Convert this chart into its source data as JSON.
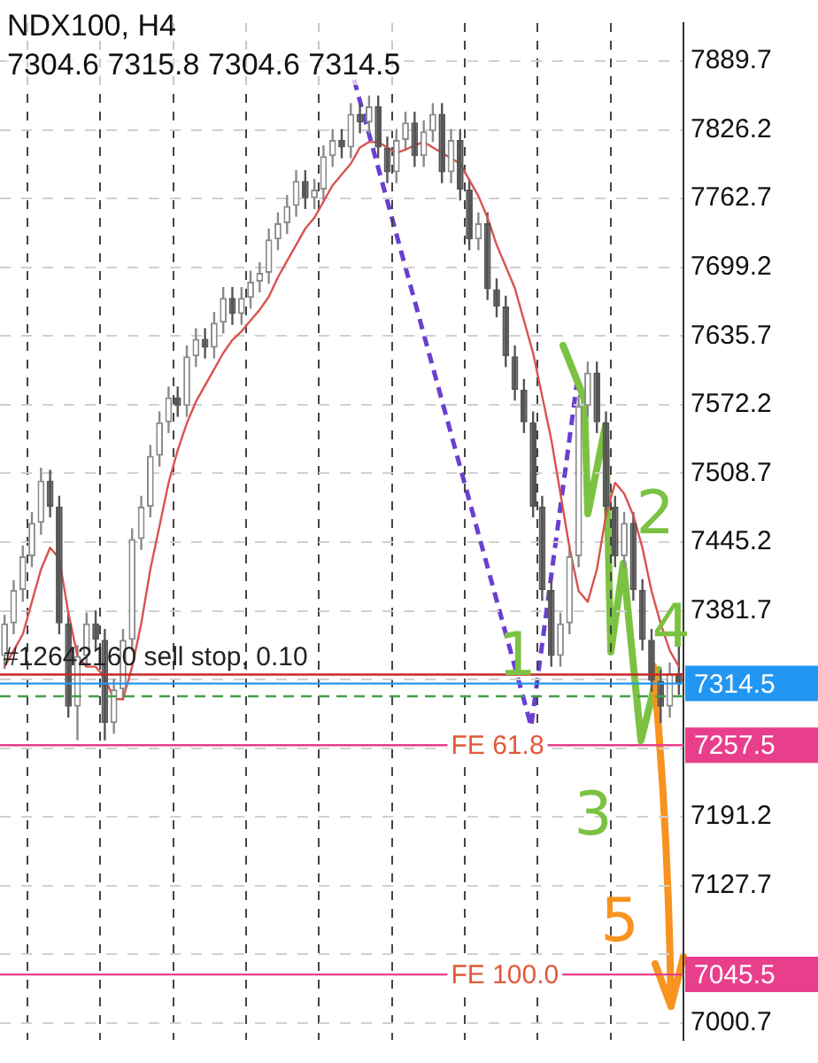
{
  "chart_data": {
    "type": "candlestick",
    "title": "NDX100, H4",
    "subtitle": "7304.6 7315.8 7304.6 7314.5",
    "categories": [
      null,
      null,
      null,
      null,
      null,
      null,
      null,
      null,
      null,
      null,
      null,
      null,
      null,
      null,
      null,
      null,
      null,
      null,
      null,
      null,
      null,
      null,
      null,
      null,
      null,
      null,
      null,
      null,
      null,
      null,
      null,
      null,
      null,
      null,
      null,
      null,
      null,
      null,
      null,
      null,
      null,
      null,
      null,
      null,
      null,
      null,
      null,
      null,
      null,
      null,
      null,
      null,
      null,
      null,
      null,
      null,
      null,
      null,
      null,
      null,
      null,
      null,
      null,
      null,
      null,
      null,
      null,
      null,
      null,
      null,
      null,
      null,
      null,
      null,
      null
    ],
    "ohlc": [
      [
        7340,
        7378,
        7328,
        7370
      ],
      [
        7370,
        7410,
        7360,
        7401
      ],
      [
        7401,
        7442,
        7390,
        7432
      ],
      [
        7432,
        7473,
        7422,
        7463
      ],
      [
        7463,
        7514,
        7452,
        7502
      ],
      [
        7502,
        7512,
        7468,
        7478
      ],
      [
        7478,
        7488,
        7360,
        7370
      ],
      [
        7370,
        7380,
        7283,
        7293
      ],
      [
        7293,
        7350,
        7262,
        7340
      ],
      [
        7340,
        7380,
        7330,
        7370
      ],
      [
        7370,
        7382,
        7345,
        7355
      ],
      [
        7355,
        7365,
        7262,
        7278
      ],
      [
        7278,
        7319,
        7268,
        7309
      ],
      [
        7309,
        7365,
        7299,
        7355
      ],
      [
        7355,
        7458,
        7345,
        7448
      ],
      [
        7448,
        7488,
        7438,
        7478
      ],
      [
        7478,
        7535,
        7468,
        7525
      ],
      [
        7525,
        7566,
        7515,
        7556
      ],
      [
        7556,
        7589,
        7546,
        7579
      ],
      [
        7579,
        7589,
        7561,
        7571
      ],
      [
        7571,
        7627,
        7561,
        7617
      ],
      [
        7617,
        7643,
        7607,
        7633
      ],
      [
        7633,
        7643,
        7615,
        7625
      ],
      [
        7625,
        7658,
        7615,
        7648
      ],
      [
        7648,
        7681,
        7638,
        7671
      ],
      [
        7671,
        7681,
        7646,
        7656
      ],
      [
        7656,
        7681,
        7646,
        7671
      ],
      [
        7671,
        7696,
        7661,
        7686
      ],
      [
        7686,
        7704,
        7676,
        7694
      ],
      [
        7694,
        7735,
        7684,
        7725
      ],
      [
        7725,
        7750,
        7715,
        7740
      ],
      [
        7740,
        7766,
        7730,
        7756
      ],
      [
        7756,
        7789,
        7746,
        7779
      ],
      [
        7779,
        7789,
        7753,
        7763
      ],
      [
        7763,
        7781,
        7753,
        7771
      ],
      [
        7771,
        7812,
        7761,
        7802
      ],
      [
        7802,
        7827,
        7792,
        7817
      ],
      [
        7817,
        7827,
        7800,
        7810
      ],
      [
        7810,
        7851,
        7800,
        7841
      ],
      [
        7841,
        7851,
        7823,
        7833
      ],
      [
        7833,
        7858,
        7823,
        7848
      ],
      [
        7848,
        7858,
        7800,
        7810
      ],
      [
        7810,
        7820,
        7777,
        7787
      ],
      [
        7787,
        7827,
        7777,
        7817
      ],
      [
        7817,
        7843,
        7807,
        7833
      ],
      [
        7833,
        7843,
        7792,
        7802
      ],
      [
        7802,
        7835,
        7792,
        7825
      ],
      [
        7825,
        7851,
        7815,
        7841
      ],
      [
        7841,
        7851,
        7777,
        7787
      ],
      [
        7787,
        7827,
        7777,
        7817
      ],
      [
        7817,
        7827,
        7761,
        7771
      ],
      [
        7771,
        7781,
        7715,
        7725
      ],
      [
        7725,
        7750,
        7715,
        7740
      ],
      [
        7740,
        7750,
        7669,
        7679
      ],
      [
        7679,
        7689,
        7653,
        7663
      ],
      [
        7663,
        7673,
        7607,
        7617
      ],
      [
        7617,
        7627,
        7576,
        7586
      ],
      [
        7586,
        7596,
        7546,
        7556
      ],
      [
        7556,
        7566,
        7468,
        7478
      ],
      [
        7478,
        7488,
        7391,
        7401
      ],
      [
        7401,
        7411,
        7330,
        7340
      ],
      [
        7340,
        7380,
        7330,
        7370
      ],
      [
        7370,
        7442,
        7360,
        7432
      ],
      [
        7432,
        7581,
        7422,
        7571
      ],
      [
        7571,
        7612,
        7561,
        7602
      ],
      [
        7602,
        7612,
        7546,
        7556
      ],
      [
        7556,
        7566,
        7468,
        7478
      ],
      [
        7478,
        7488,
        7422,
        7432
      ],
      [
        7432,
        7473,
        7422,
        7463
      ],
      [
        7463,
        7473,
        7391,
        7401
      ],
      [
        7401,
        7411,
        7345,
        7355
      ],
      [
        7355,
        7365,
        7307,
        7317
      ],
      [
        7317,
        7327,
        7278,
        7293
      ],
      [
        7293,
        7334,
        7283,
        7324
      ],
      [
        7324,
        7350,
        7304,
        7314.5
      ]
    ],
    "colors": [
      "#8a8a8a",
      "#8a8a8a",
      "#8a8a8a",
      "#8a8a8a",
      "#8a8a8a",
      "#555555",
      "#555555",
      "#555555",
      "#8a8a8a",
      "#8a8a8a",
      "#555555",
      "#555555",
      "#8a8a8a",
      "#8a8a8a",
      "#8a8a8a",
      "#8a8a8a",
      "#8a8a8a",
      "#8a8a8a",
      "#8a8a8a",
      "#555555",
      "#8a8a8a",
      "#8a8a8a",
      "#555555",
      "#8a8a8a",
      "#8a8a8a",
      "#555555",
      "#8a8a8a",
      "#8a8a8a",
      "#8a8a8a",
      "#8a8a8a",
      "#8a8a8a",
      "#8a8a8a",
      "#8a8a8a",
      "#555555",
      "#8a8a8a",
      "#8a8a8a",
      "#8a8a8a",
      "#555555",
      "#8a8a8a",
      "#555555",
      "#8a8a8a",
      "#555555",
      "#555555",
      "#8a8a8a",
      "#8a8a8a",
      "#555555",
      "#8a8a8a",
      "#8a8a8a",
      "#555555",
      "#8a8a8a",
      "#555555",
      "#555555",
      "#8a8a8a",
      "#555555",
      "#555555",
      "#555555",
      "#555555",
      "#555555",
      "#555555",
      "#555555",
      "#555555",
      "#8a8a8a",
      "#8a8a8a",
      "#8a8a8a",
      "#8a8a8a",
      "#555555",
      "#555555",
      "#555555",
      "#8a8a8a",
      "#555555",
      "#555555",
      "#555555",
      "#555555",
      "#8a8a8a",
      "#555555"
    ],
    "series": [
      {
        "type": "line",
        "color": "#d9534f",
        "values": [
          7330,
          7345,
          7360,
          7390,
          7420,
          7440,
          7430,
          7380,
          7340,
          7330,
          7330,
          7320,
          7300,
          7300,
          7330,
          7370,
          7420,
          7460,
          7500,
          7530,
          7555,
          7575,
          7590,
          7605,
          7620,
          7632,
          7640,
          7650,
          7660,
          7672,
          7690,
          7705,
          7720,
          7735,
          7745,
          7760,
          7775,
          7785,
          7795,
          7810,
          7815,
          7815,
          7810,
          7805,
          7808,
          7812,
          7815,
          7810,
          7805,
          7800,
          7795,
          7780,
          7765,
          7745,
          7720,
          7700,
          7680,
          7650,
          7620,
          7580,
          7540,
          7490,
          7440,
          7400,
          7390,
          7420,
          7470,
          7500,
          7490,
          7470,
          7440,
          7400,
          7370,
          7345,
          7330
        ]
      }
    ],
    "ylim": [
      6985,
      7925
    ],
    "yticks": [
      7000.7,
      {
        "value": 7064.2,
        "label": null
      },
      7127.7,
      7191.2,
      {
        "value": 7254.7,
        "label": null
      },
      {
        "value": 7318.2,
        "label": null
      },
      7381.7,
      7445.2,
      7508.7,
      7572.2,
      7635.7,
      7699.2,
      7762.7,
      7826.2,
      7889.7
    ],
    "grid": true,
    "legend": false,
    "tick_labels": "y",
    "marker": "none",
    "ref_lines": [
      {
        "axis": "y",
        "value": 7322.8,
        "label": "#12642160 sell stop, 0.10",
        "color": "#c62828",
        "line_style": "solid"
      },
      {
        "axis": "y",
        "value": 7314.5,
        "label": "7314.5",
        "color": "#2196f3"
      },
      {
        "axis": "y",
        "value": 7302.7,
        "color": "#43a047",
        "line_style": "dashed"
      },
      {
        "axis": "y",
        "value": 7257.5,
        "label": "7257.5",
        "color": "#e83e8c"
      },
      {
        "axis": "y",
        "value": 7045.5,
        "label": "7045.5",
        "color": "#e83e8c"
      }
    ],
    "annotations": [
      "1",
      "2",
      "3",
      "4",
      "5",
      {
        "text": "FE 61.8",
        "y": 7257.5
      },
      {
        "text": "FE 100.0",
        "y": 7045.5
      }
    ]
  }
}
